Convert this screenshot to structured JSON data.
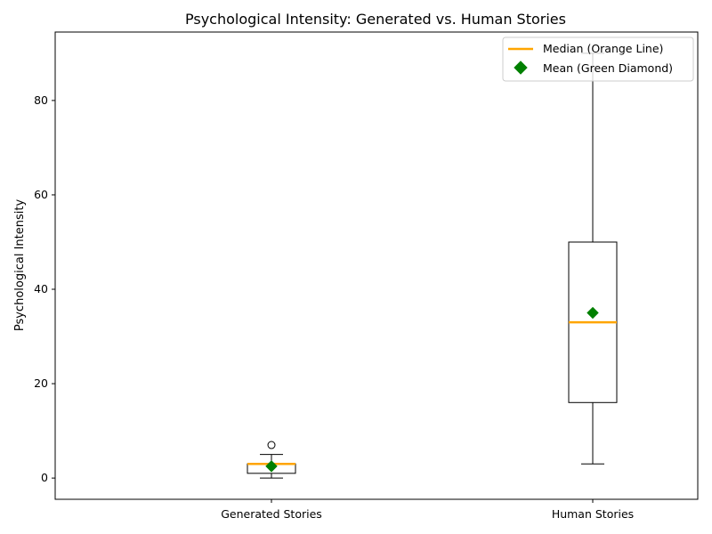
{
  "chart_data": {
    "type": "box",
    "title": "Psychological Intensity: Generated vs. Human Stories",
    "xlabel": "",
    "ylabel": "Psychological Intensity",
    "ylim": [
      -4.5,
      94.5
    ],
    "yticks": [
      0,
      20,
      40,
      60,
      80
    ],
    "categories": [
      "Generated Stories",
      "Human Stories"
    ],
    "boxes": [
      {
        "category": "Generated Stories",
        "whislo": 0,
        "q1": 1,
        "med": 3,
        "q3": 3,
        "whishi": 5,
        "mean": 2.5,
        "fliers": [
          7
        ]
      },
      {
        "category": "Human Stories",
        "whislo": 3,
        "q1": 16,
        "med": 33,
        "q3": 50,
        "whishi": 90,
        "mean": 35,
        "fliers": []
      }
    ],
    "legend": {
      "position": "top-right",
      "entries": [
        "Median (Orange Line)",
        "Mean (Green Diamond)"
      ]
    },
    "colors": {
      "median": "#ffa500",
      "mean": "#008000",
      "box": "#000000"
    }
  }
}
